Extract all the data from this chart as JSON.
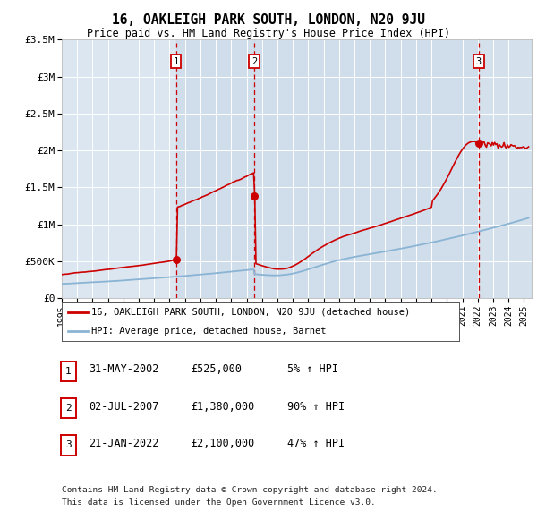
{
  "title": "16, OAKLEIGH PARK SOUTH, LONDON, N20 9JU",
  "subtitle": "Price paid vs. HM Land Registry's House Price Index (HPI)",
  "ylim": [
    0,
    3500000
  ],
  "yticks": [
    0,
    500000,
    1000000,
    1500000,
    2000000,
    2500000,
    3000000,
    3500000
  ],
  "ytick_labels": [
    "£0",
    "£500K",
    "£1M",
    "£1.5M",
    "£2M",
    "£2.5M",
    "£3M",
    "£3.5M"
  ],
  "xlim_start": 1995.0,
  "xlim_end": 2025.5,
  "background_color": "#ffffff",
  "plot_bg_color": "#dce6f0",
  "grid_color": "#ffffff",
  "sale1_date": 2002.41,
  "sale1_price": 525000,
  "sale2_date": 2007.5,
  "sale2_price": 1380000,
  "sale3_date": 2022.06,
  "sale3_price": 2100000,
  "legend_line1": "16, OAKLEIGH PARK SOUTH, LONDON, N20 9JU (detached house)",
  "legend_line2": "HPI: Average price, detached house, Barnet",
  "table_rows": [
    {
      "num": "1",
      "date": "31-MAY-2002",
      "price": "£525,000",
      "pct": "5% ↑ HPI"
    },
    {
      "num": "2",
      "date": "02-JUL-2007",
      "price": "£1,380,000",
      "pct": "90% ↑ HPI"
    },
    {
      "num": "3",
      "date": "21-JAN-2022",
      "price": "£2,100,000",
      "pct": "47% ↑ HPI"
    }
  ],
  "footnote1": "Contains HM Land Registry data © Crown copyright and database right 2024.",
  "footnote2": "This data is licensed under the Open Government Licence v3.0.",
  "price_line_color": "#cc0000",
  "hpi_line_color": "#8ab4d4",
  "dashed_line_color": "#cc0000",
  "shaded_region_color": "#c8d8e8"
}
